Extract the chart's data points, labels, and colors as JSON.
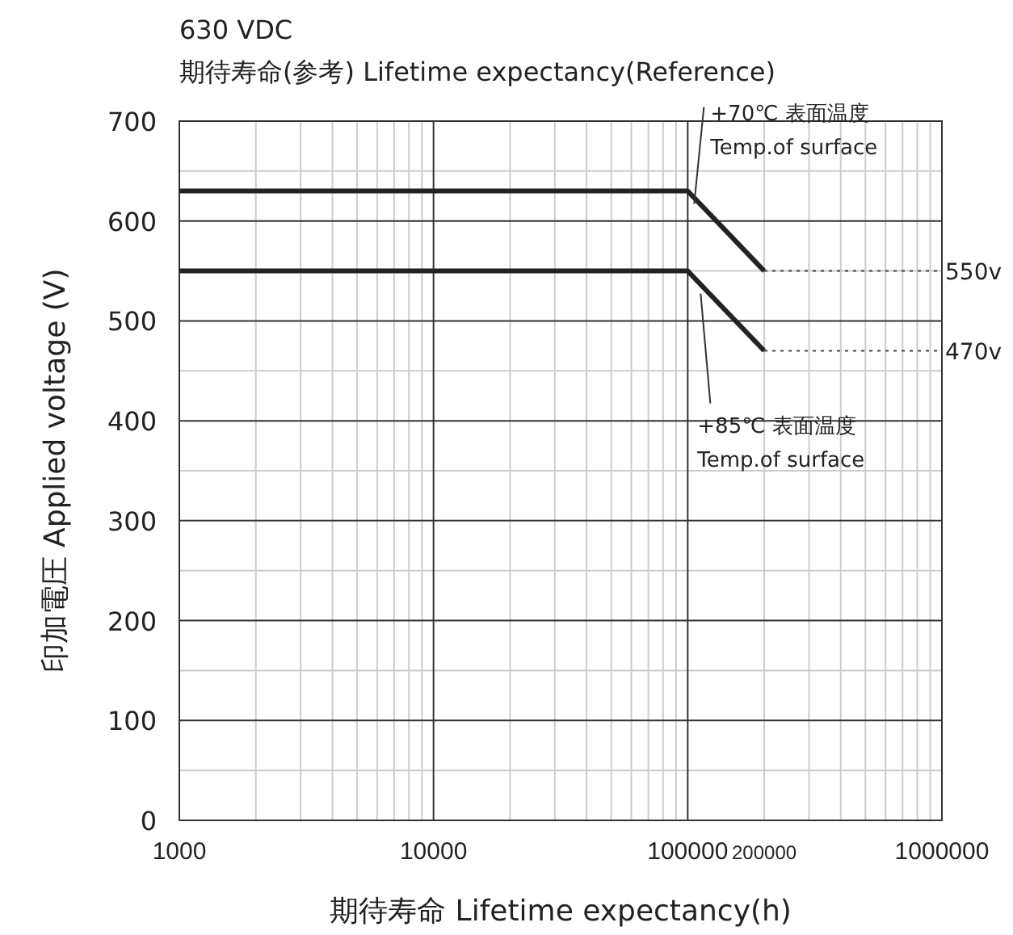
{
  "chart_data": {
    "type": "line",
    "title": "630 VDC",
    "subtitle": "期待寿命(参考) Lifetime expectancy(Reference)",
    "xlabel": "期待寿命 Lifetime expectancy(h)",
    "ylabel": "印加電圧  Applied voltage (V)",
    "log": "x",
    "xlim": [
      1000,
      1000000
    ],
    "xticks": [
      1000,
      10000,
      100000,
      {
        "value": 200000,
        "label": "200000"
      },
      1000000
    ],
    "ylim": [
      0,
      700
    ],
    "yticks": [
      0,
      100,
      200,
      300,
      400,
      500,
      600,
      700
    ],
    "grid": true,
    "series": [
      {
        "name": "+70℃ 表面温度\nTemp.of surface",
        "color": "#222222",
        "x": [
          1000,
          100000,
          200000
        ],
        "values": [
          630,
          630,
          550
        ]
      },
      {
        "name": "+85℃ 表面温度\nTemp.of surface",
        "color": "#222222",
        "x": [
          1000,
          100000,
          200000
        ],
        "values": [
          550,
          550,
          470
        ]
      },
      {
        "color": "#444444",
        "line_style": "dotted",
        "x": [
          200000,
          1000000
        ],
        "values": [
          550,
          550
        ]
      },
      {
        "color": "#444444",
        "line_style": "dotted",
        "x": [
          200000,
          1000000
        ],
        "values": [
          470,
          470
        ]
      }
    ],
    "annotations": [
      {
        "text": "550v",
        "x": 1000000,
        "y": 550
      },
      {
        "text": "470v",
        "x": 1000000,
        "y": 470
      }
    ]
  }
}
